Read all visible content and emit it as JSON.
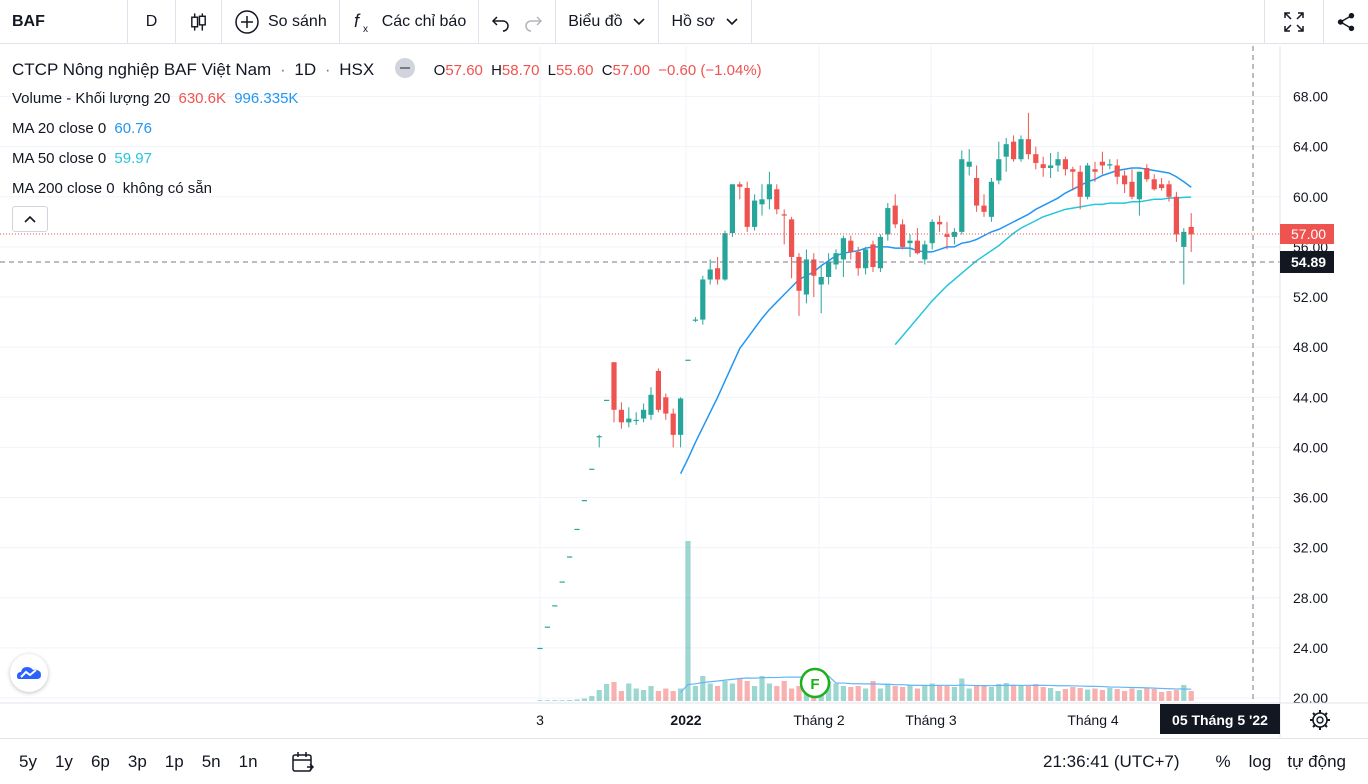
{
  "toolbar": {
    "ticker": "BAF",
    "interval": "D",
    "compare": "So sánh",
    "indicators": "Các chỉ báo",
    "chart_type": "Biểu đồ",
    "profile": "Hồ sơ"
  },
  "legend": {
    "title": "CTCP Nông nghiệp BAF Việt Nam",
    "sep1": "·",
    "timeframe": "1D",
    "sep2": "·",
    "exchange": "HSX",
    "o_label": "O",
    "o_value": "57.60",
    "h_label": "H",
    "h_value": "58.70",
    "l_label": "L",
    "l_value": "55.60",
    "c_label": "C",
    "c_value": "57.00",
    "change": "−0.60 (−1.04%)",
    "volume_label": "Volume - Khối lượng 20",
    "volume_value": "630.6K",
    "volume_ma": "996.335K",
    "ma20_label": "MA 20 close 0",
    "ma20_value": "60.76",
    "ma50_label": "MA 50 close 0",
    "ma50_value": "59.97",
    "ma200_label": "MA 200 close 0",
    "ma200_value": "không có sẵn"
  },
  "price_axis": {
    "ticks": [
      "68.00",
      "64.00",
      "60.00",
      "56.00",
      "52.00",
      "48.00",
      "44.00",
      "40.00",
      "36.00",
      "32.00",
      "28.00",
      "24.00",
      "20.00"
    ],
    "last_price_label": "57.00",
    "crosshair_label": "54.89"
  },
  "time_axis": {
    "labels": [
      "3",
      "2022",
      "Tháng 2",
      "Tháng 3",
      "Tháng 4"
    ],
    "crosshair_label": "05 Tháng 5 '22"
  },
  "marker": {
    "label": "F"
  },
  "bottombar": {
    "ranges": [
      "5y",
      "1y",
      "6p",
      "3p",
      "1p",
      "5n",
      "1n"
    ],
    "time": "21:36:41 (UTC+7)",
    "percent": "%",
    "log": "log",
    "auto": "tự động"
  },
  "colors": {
    "up": "#26a69a",
    "down": "#ef5350",
    "ma20": "#2196f3",
    "ma50": "#26c6da",
    "volume_ma": "#64b5f6"
  },
  "chart_data": {
    "type": "candlestick",
    "ylim": [
      20,
      68
    ],
    "candles": [
      {
        "o": 24.0,
        "h": 24.0,
        "l": 24.0,
        "c": 24.0
      },
      {
        "o": 25.7,
        "h": 25.7,
        "l": 25.7,
        "c": 25.7
      },
      {
        "o": 27.4,
        "h": 27.4,
        "l": 27.4,
        "c": 27.4
      },
      {
        "o": 29.3,
        "h": 29.3,
        "l": 29.3,
        "c": 29.3
      },
      {
        "o": 31.3,
        "h": 31.3,
        "l": 31.3,
        "c": 31.3
      },
      {
        "o": 33.5,
        "h": 33.5,
        "l": 33.5,
        "c": 33.5
      },
      {
        "o": 35.8,
        "h": 35.8,
        "l": 35.8,
        "c": 35.8
      },
      {
        "o": 38.3,
        "h": 38.3,
        "l": 38.3,
        "c": 38.3
      },
      {
        "o": 40.9,
        "h": 41.0,
        "l": 40.0,
        "c": 40.9
      },
      {
        "o": 43.8,
        "h": 43.8,
        "l": 43.8,
        "c": 43.8
      },
      {
        "o": 46.8,
        "h": 46.8,
        "l": 42.0,
        "c": 43.0
      },
      {
        "o": 43.0,
        "h": 43.6,
        "l": 41.5,
        "c": 42.0
      },
      {
        "o": 42.0,
        "h": 43.2,
        "l": 41.6,
        "c": 42.3
      },
      {
        "o": 42.2,
        "h": 42.8,
        "l": 41.8,
        "c": 42.2
      },
      {
        "o": 42.3,
        "h": 43.5,
        "l": 42.0,
        "c": 43.0
      },
      {
        "o": 42.6,
        "h": 44.8,
        "l": 42.2,
        "c": 44.2
      },
      {
        "o": 46.1,
        "h": 46.3,
        "l": 42.8,
        "c": 43.0
      },
      {
        "o": 44.0,
        "h": 44.3,
        "l": 42.2,
        "c": 42.7
      },
      {
        "o": 42.7,
        "h": 43.1,
        "l": 40.0,
        "c": 41.0
      },
      {
        "o": 41.0,
        "h": 44.0,
        "l": 40.0,
        "c": 43.9
      },
      {
        "o": 47.0,
        "h": 47.0,
        "l": 47.0,
        "c": 47.0
      },
      {
        "o": 50.2,
        "h": 50.4,
        "l": 50.0,
        "c": 50.2
      },
      {
        "o": 50.2,
        "h": 53.7,
        "l": 49.8,
        "c": 53.4
      },
      {
        "o": 53.4,
        "h": 55.0,
        "l": 53.0,
        "c": 54.2
      },
      {
        "o": 54.3,
        "h": 55.2,
        "l": 53.0,
        "c": 53.4
      },
      {
        "o": 53.4,
        "h": 57.3,
        "l": 53.3,
        "c": 57.1
      },
      {
        "o": 57.1,
        "h": 61.0,
        "l": 56.8,
        "c": 61.0
      },
      {
        "o": 61.0,
        "h": 61.2,
        "l": 59.8,
        "c": 60.8
      },
      {
        "o": 60.7,
        "h": 61.2,
        "l": 57.2,
        "c": 57.6
      },
      {
        "o": 57.6,
        "h": 60.2,
        "l": 57.3,
        "c": 59.7
      },
      {
        "o": 59.4,
        "h": 61.0,
        "l": 58.5,
        "c": 59.8
      },
      {
        "o": 59.8,
        "h": 62.0,
        "l": 59.0,
        "c": 61.0
      },
      {
        "o": 60.6,
        "h": 61.0,
        "l": 58.6,
        "c": 59.0
      },
      {
        "o": 58.6,
        "h": 59.0,
        "l": 56.2,
        "c": 58.5
      },
      {
        "o": 58.2,
        "h": 58.4,
        "l": 53.5,
        "c": 55.2
      },
      {
        "o": 55.2,
        "h": 55.5,
        "l": 50.5,
        "c": 52.5
      },
      {
        "o": 52.2,
        "h": 55.8,
        "l": 51.5,
        "c": 55.0
      },
      {
        "o": 55.0,
        "h": 55.5,
        "l": 52.0,
        "c": 53.7
      },
      {
        "o": 53.0,
        "h": 54.5,
        "l": 50.7,
        "c": 53.6
      },
      {
        "o": 53.6,
        "h": 55.5,
        "l": 53.0,
        "c": 54.8
      },
      {
        "o": 54.6,
        "h": 55.8,
        "l": 54.2,
        "c": 55.5
      },
      {
        "o": 55.0,
        "h": 56.9,
        "l": 53.6,
        "c": 56.7
      },
      {
        "o": 56.5,
        "h": 56.9,
        "l": 55.0,
        "c": 55.6
      },
      {
        "o": 55.6,
        "h": 56.0,
        "l": 53.7,
        "c": 54.3
      },
      {
        "o": 54.3,
        "h": 56.0,
        "l": 53.8,
        "c": 55.8
      },
      {
        "o": 56.2,
        "h": 56.5,
        "l": 54.0,
        "c": 54.4
      },
      {
        "o": 54.3,
        "h": 57.0,
        "l": 54.0,
        "c": 56.8
      },
      {
        "o": 57.0,
        "h": 59.5,
        "l": 56.5,
        "c": 59.1
      },
      {
        "o": 59.3,
        "h": 60.2,
        "l": 57.5,
        "c": 57.8
      },
      {
        "o": 57.8,
        "h": 58.2,
        "l": 55.8,
        "c": 56.0
      },
      {
        "o": 56.3,
        "h": 57.0,
        "l": 55.2,
        "c": 56.5
      },
      {
        "o": 56.5,
        "h": 57.5,
        "l": 55.4,
        "c": 55.5
      },
      {
        "o": 55.0,
        "h": 56.5,
        "l": 54.6,
        "c": 56.2
      },
      {
        "o": 56.3,
        "h": 58.2,
        "l": 55.8,
        "c": 58.0
      },
      {
        "o": 58.0,
        "h": 58.5,
        "l": 57.2,
        "c": 57.8
      },
      {
        "o": 57.0,
        "h": 58.0,
        "l": 55.8,
        "c": 56.8
      },
      {
        "o": 56.8,
        "h": 57.5,
        "l": 56.2,
        "c": 57.2
      },
      {
        "o": 57.2,
        "h": 63.7,
        "l": 57.0,
        "c": 63.0
      },
      {
        "o": 62.4,
        "h": 63.8,
        "l": 61.7,
        "c": 62.8
      },
      {
        "o": 61.5,
        "h": 62.5,
        "l": 58.8,
        "c": 59.3
      },
      {
        "o": 59.3,
        "h": 60.2,
        "l": 58.4,
        "c": 58.8
      },
      {
        "o": 58.4,
        "h": 61.5,
        "l": 58.0,
        "c": 61.2
      },
      {
        "o": 61.3,
        "h": 64.4,
        "l": 61.0,
        "c": 63.0
      },
      {
        "o": 63.2,
        "h": 64.7,
        "l": 62.0,
        "c": 64.2
      },
      {
        "o": 64.4,
        "h": 64.9,
        "l": 62.8,
        "c": 63.0
      },
      {
        "o": 63.0,
        "h": 64.9,
        "l": 62.8,
        "c": 64.6
      },
      {
        "o": 64.6,
        "h": 66.7,
        "l": 63.0,
        "c": 63.4
      },
      {
        "o": 63.4,
        "h": 64.0,
        "l": 62.2,
        "c": 62.7
      },
      {
        "o": 62.6,
        "h": 63.2,
        "l": 61.6,
        "c": 62.3
      },
      {
        "o": 62.3,
        "h": 63.5,
        "l": 61.5,
        "c": 62.5
      },
      {
        "o": 62.5,
        "h": 63.6,
        "l": 62.0,
        "c": 63.0
      },
      {
        "o": 63.0,
        "h": 63.2,
        "l": 61.7,
        "c": 62.2
      },
      {
        "o": 62.2,
        "h": 62.4,
        "l": 60.5,
        "c": 62.0
      },
      {
        "o": 62.0,
        "h": 62.5,
        "l": 59.0,
        "c": 60.0
      },
      {
        "o": 60.0,
        "h": 62.7,
        "l": 59.8,
        "c": 62.5
      },
      {
        "o": 62.2,
        "h": 62.8,
        "l": 61.2,
        "c": 62.0
      },
      {
        "o": 62.8,
        "h": 63.6,
        "l": 61.8,
        "c": 62.5
      },
      {
        "o": 62.5,
        "h": 63.0,
        "l": 62.2,
        "c": 62.6
      },
      {
        "o": 62.5,
        "h": 63.0,
        "l": 61.0,
        "c": 61.6
      },
      {
        "o": 61.7,
        "h": 62.1,
        "l": 60.3,
        "c": 61.0
      },
      {
        "o": 61.2,
        "h": 62.2,
        "l": 59.8,
        "c": 60.0
      },
      {
        "o": 59.8,
        "h": 62.0,
        "l": 58.5,
        "c": 62.0
      },
      {
        "o": 62.3,
        "h": 62.6,
        "l": 61.2,
        "c": 61.4
      },
      {
        "o": 61.4,
        "h": 61.8,
        "l": 60.5,
        "c": 60.6
      },
      {
        "o": 61.0,
        "h": 61.5,
        "l": 60.5,
        "c": 60.7
      },
      {
        "o": 61.0,
        "h": 61.3,
        "l": 59.6,
        "c": 60.0
      },
      {
        "o": 60.0,
        "h": 60.4,
        "l": 56.4,
        "c": 57.0
      },
      {
        "o": 56.0,
        "h": 57.5,
        "l": 53.0,
        "c": 57.2
      },
      {
        "o": 57.6,
        "h": 58.7,
        "l": 55.6,
        "c": 57.0
      }
    ],
    "volume_bars": [
      0.05,
      0.1,
      0.1,
      0.15,
      0.2,
      0.3,
      0.5,
      1.0,
      2.2,
      3.4,
      3.8,
      2.0,
      3.5,
      2.5,
      2.2,
      3.0,
      2.0,
      2.5,
      2.0,
      2.5,
      32.0,
      3.0,
      5.0,
      3.5,
      3.0,
      4.0,
      3.5,
      4.5,
      4.0,
      3.0,
      5.0,
      3.5,
      3.0,
      4.0,
      2.5,
      3.0,
      3.2,
      3.0,
      3.5,
      4.0,
      3.5,
      3.0,
      2.8,
      3.0,
      2.5,
      4.0,
      2.5,
      3.5,
      3.0,
      2.8,
      3.2,
      2.5,
      3.0,
      3.5,
      3.2,
      3.0,
      2.8,
      4.5,
      2.5,
      3.0,
      3.2,
      2.8,
      3.4,
      3.6,
      3.0,
      3.2,
      3.0,
      3.4,
      2.8,
      2.6,
      2.0,
      2.4,
      2.8,
      2.6,
      2.3,
      2.5,
      2.2,
      2.6,
      2.4,
      2.0,
      2.5,
      2.2,
      2.6,
      2.4,
      1.8,
      2.0,
      2.2,
      3.2,
      2.0
    ],
    "ma20": [
      null,
      null,
      null,
      null,
      null,
      null,
      null,
      null,
      null,
      null,
      null,
      null,
      null,
      null,
      null,
      null,
      null,
      null,
      null,
      37.9,
      39.1,
      40.4,
      41.6,
      42.8,
      44.0,
      45.3,
      46.6,
      47.9,
      48.7,
      49.5,
      50.3,
      51.0,
      51.6,
      52.2,
      52.8,
      53.4,
      53.7,
      54.0,
      54.5,
      54.9,
      55.3,
      55.5,
      55.6,
      55.7,
      55.9,
      56.0,
      56.0,
      56.0,
      55.9,
      55.9,
      55.9,
      55.7,
      55.6,
      55.6,
      55.8,
      56.0,
      56.0,
      56.3,
      56.4,
      56.6,
      56.9,
      57.2,
      57.4,
      57.7,
      58.0,
      58.3,
      58.6,
      59.0,
      59.3,
      59.6,
      59.9,
      60.3,
      60.6,
      60.9,
      61.2,
      61.4,
      61.7,
      61.9,
      62.1,
      62.2,
      62.3,
      62.3,
      62.2,
      62.1,
      62.0,
      61.9,
      61.6,
      61.2,
      60.76
    ],
    "ma50": [
      null,
      null,
      null,
      null,
      null,
      null,
      null,
      null,
      null,
      null,
      null,
      null,
      null,
      null,
      null,
      null,
      null,
      null,
      null,
      null,
      null,
      null,
      null,
      null,
      null,
      null,
      null,
      null,
      null,
      null,
      null,
      null,
      null,
      null,
      null,
      null,
      null,
      null,
      null,
      null,
      null,
      null,
      null,
      null,
      null,
      null,
      null,
      null,
      48.2,
      48.9,
      49.6,
      50.3,
      51.0,
      51.7,
      52.3,
      52.9,
      53.4,
      53.9,
      54.4,
      54.9,
      55.3,
      55.7,
      56.1,
      56.6,
      57.1,
      57.5,
      57.8,
      58.1,
      58.4,
      58.6,
      58.8,
      59.0,
      59.1,
      59.2,
      59.3,
      59.4,
      59.4,
      59.5,
      59.5,
      59.5,
      59.6,
      59.6,
      59.7,
      59.8,
      59.8,
      59.9,
      59.9,
      59.95,
      59.97
    ]
  }
}
